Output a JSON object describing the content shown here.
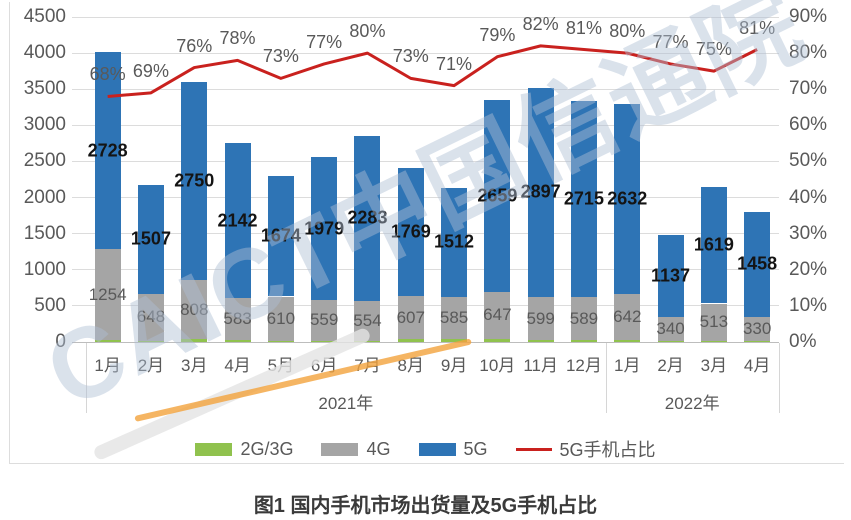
{
  "caption": "图1  国内手机市场出货量及5G手机占比",
  "watermark": {
    "text": "CAICT中国信通院",
    "text_color": "#AFBFD5",
    "swoosh_color": "#F2A33C"
  },
  "chart_data": {
    "type": "combo: stacked-bar + line",
    "categories": [
      "1月",
      "2月",
      "3月",
      "4月",
      "5月",
      "6月",
      "7月",
      "8月",
      "9月",
      "10月",
      "11月",
      "12月",
      "1月",
      "2月",
      "3月",
      "4月"
    ],
    "category_groups": [
      {
        "label": "2021年",
        "count": 12
      },
      {
        "label": "2022年",
        "count": 4
      }
    ],
    "bar_series": [
      {
        "name": "2G/3G",
        "color": "#90C24E",
        "labels_shown": false,
        "estimated": true,
        "values": [
          30,
          20,
          45,
          25,
          20,
          20,
          20,
          35,
          40,
          45,
          25,
          30,
          25,
          10,
          20,
          15
        ]
      },
      {
        "name": "4G",
        "color": "#A5A5A5",
        "labels_shown": true,
        "values": [
          1254,
          648,
          808,
          583,
          610,
          559,
          554,
          607,
          585,
          647,
          599,
          589,
          642,
          340,
          513,
          330
        ]
      },
      {
        "name": "5G",
        "color": "#2E74B5",
        "labels_shown": true,
        "values": [
          2728,
          1507,
          2750,
          2142,
          1674,
          1979,
          2283,
          1769,
          1512,
          2659,
          2897,
          2715,
          2632,
          1137,
          1619,
          1458
        ]
      }
    ],
    "line_series": {
      "name": "5G手机占比",
      "color": "#C9211E",
      "unit": "%",
      "values": [
        68,
        69,
        76,
        78,
        73,
        77,
        80,
        73,
        71,
        79,
        82,
        81,
        80,
        77,
        75,
        81
      ]
    },
    "left_axis": {
      "min": 0,
      "max": 4500,
      "step": 500,
      "ticks": [
        "0",
        "500",
        "1000",
        "1500",
        "2000",
        "2500",
        "3000",
        "3500",
        "4000",
        "4500"
      ]
    },
    "right_axis": {
      "min": 0,
      "max": 90,
      "step": 10,
      "ticks": [
        "0%",
        "10%",
        "20%",
        "30%",
        "40%",
        "50%",
        "60%",
        "70%",
        "80%",
        "90%"
      ]
    },
    "grid": true,
    "legend_position": "bottom"
  }
}
